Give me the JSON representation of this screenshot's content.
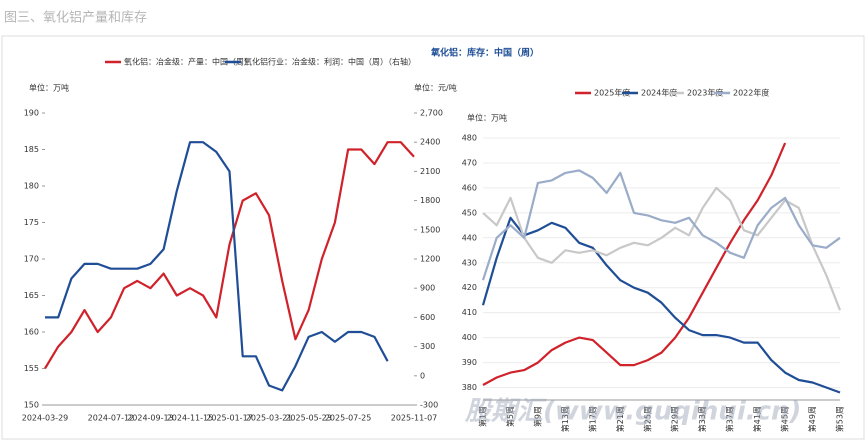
{
  "caption": "图三、氧化铝产量和库存",
  "watermark": "股期汇(www.guqihui.cn)",
  "chart_data": [
    {
      "type": "line",
      "y_unit": "单位：万吨",
      "y2_unit": "单位：元/吨",
      "categories": [
        "2024-03-29",
        null,
        null,
        null,
        null,
        "2024-07-12",
        null,
        null,
        "2024-09-13",
        null,
        null,
        "2024-11-15",
        null,
        null,
        "2025-01-17",
        null,
        null,
        "2025-03-21",
        null,
        null,
        "2025-05-23",
        null,
        null,
        "2025-07-25",
        null,
        null,
        null,
        null,
        "2025-11-07"
      ],
      "series": [
        {
          "name": "氧化铝：冶金级：产量：中国（周）",
          "color": "#d0222b",
          "values": [
            155,
            158,
            160,
            163,
            160,
            162,
            166,
            167,
            166,
            168,
            165,
            166,
            165,
            162,
            172,
            178,
            179,
            176,
            167,
            159,
            163,
            170,
            175,
            185,
            185,
            183,
            186,
            186,
            184
          ]
        },
        {
          "name": "氧化铝行业：冶金级：利润：中国（周）（右轴）",
          "color": "#1f4e96",
          "axis": "y2",
          "values": [
            600,
            600,
            1000,
            1150,
            1150,
            1100,
            1100,
            1100,
            1150,
            1300,
            1900,
            2400,
            2400,
            2300,
            2100,
            200,
            200,
            -100,
            -150,
            100,
            400,
            450,
            350,
            450,
            450,
            400,
            150,
            null,
            null
          ]
        }
      ],
      "ylim": [
        150,
        190
      ],
      "yticks": [
        150,
        155,
        160,
        165,
        170,
        175,
        180,
        185,
        190
      ],
      "y2lim": [
        -300,
        2700
      ],
      "y2ticks": [
        -300,
        0,
        300,
        600,
        900,
        1200,
        1500,
        1800,
        2100,
        2400,
        {
          "value": 2700,
          "label": "2,700"
        }
      ],
      "grid": false
    },
    {
      "type": "line",
      "title": "氧化铝：库存：中国（周）",
      "y_unit": "单位：万吨",
      "categories": [
        "第1周",
        null,
        "第5周",
        null,
        "第9周",
        null,
        "第13周",
        null,
        "第17周",
        null,
        "第21周",
        null,
        "第25周",
        null,
        "第29周",
        null,
        "第33周",
        null,
        "第37周",
        null,
        "第41周",
        null,
        "第45周",
        null,
        "第49周",
        null,
        "第53周"
      ],
      "series": [
        {
          "name": "2025年度",
          "color": "#d0222b",
          "values": [
            381,
            384,
            386,
            387,
            390,
            395,
            398,
            400,
            399,
            394,
            389,
            389,
            391,
            394,
            400,
            408,
            418,
            428,
            438,
            447,
            455,
            465,
            478,
            null,
            null,
            null,
            null
          ]
        },
        {
          "name": "2024年度",
          "color": "#1f4e96",
          "values": [
            413,
            432,
            448,
            441,
            443,
            446,
            444,
            438,
            436,
            429,
            423,
            420,
            418,
            414,
            408,
            403,
            401,
            401,
            400,
            398,
            398,
            391,
            386,
            383,
            382,
            380,
            378
          ]
        },
        {
          "name": "2023年度",
          "color": "#c8c8c8",
          "values": [
            450,
            445,
            456,
            440,
            432,
            430,
            435,
            434,
            435,
            433,
            436,
            438,
            437,
            440,
            444,
            441,
            452,
            460,
            455,
            443,
            441,
            448,
            455,
            452,
            437,
            425,
            411
          ]
        },
        {
          "name": "2022年度",
          "color": "#9aacc8",
          "values": [
            423,
            440,
            445,
            440,
            462,
            463,
            466,
            467,
            464,
            458,
            466,
            450,
            449,
            447,
            446,
            448,
            441,
            438,
            434,
            432,
            445,
            452,
            456,
            445,
            437,
            436,
            440
          ]
        }
      ],
      "ylim": [
        375,
        480
      ],
      "yticks": [
        380,
        390,
        400,
        410,
        420,
        430,
        440,
        450,
        460,
        470,
        480
      ],
      "grid": true
    }
  ]
}
